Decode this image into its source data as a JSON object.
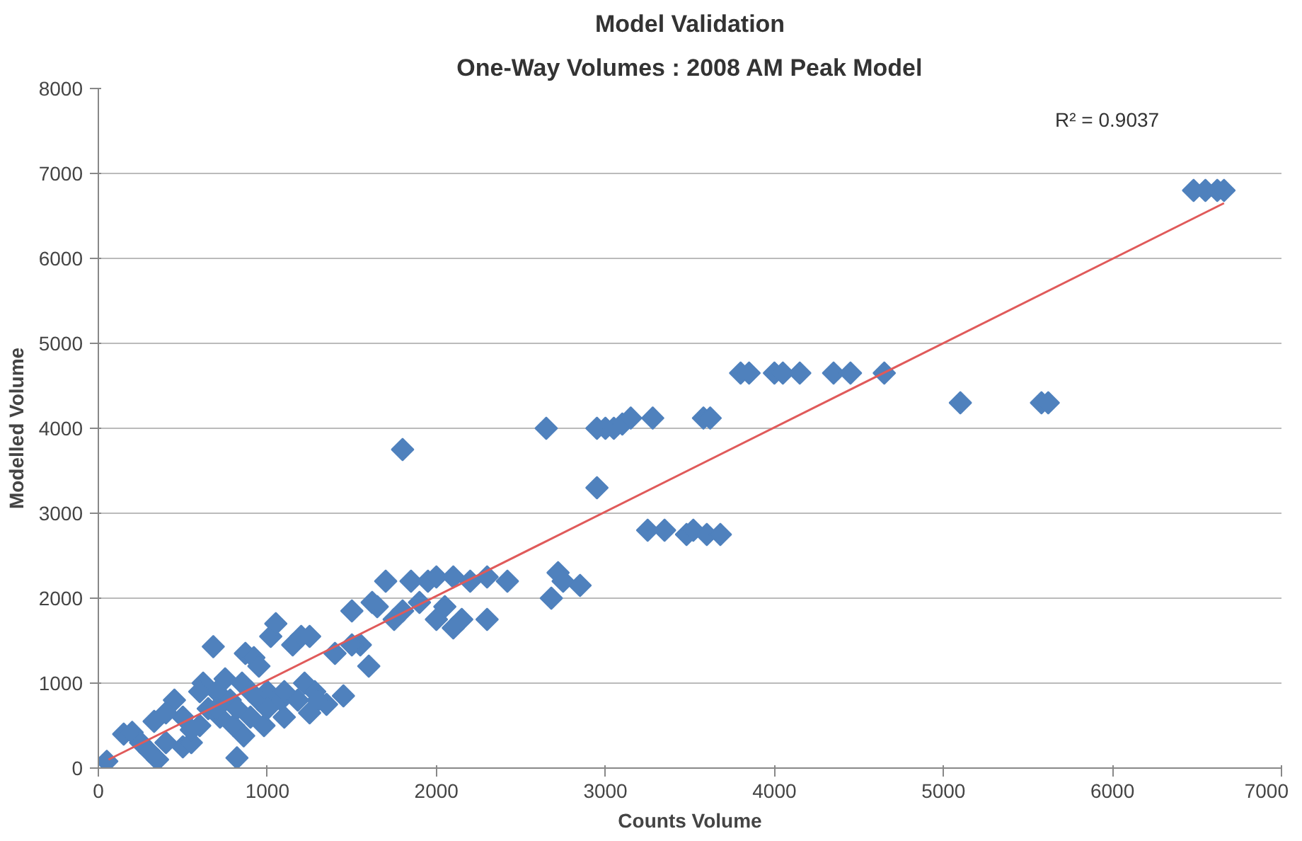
{
  "chart_data": {
    "type": "scatter",
    "title": "Model Validation",
    "subtitle": "One-Way Volumes : 2008 AM Peak Model",
    "xlabel": "Counts Volume",
    "ylabel": "Modelled Volume",
    "xlim": [
      0,
      7000
    ],
    "ylim": [
      0,
      8000
    ],
    "xticks": [
      0,
      1000,
      2000,
      3000,
      4000,
      5000,
      6000,
      7000
    ],
    "yticks": [
      0,
      1000,
      2000,
      3000,
      4000,
      5000,
      6000,
      7000,
      8000
    ],
    "grid": "y",
    "annotations": [
      "R² = 0.9037"
    ],
    "series": [
      {
        "color": "#4f81bd",
        "marker": "diamond",
        "x": [
          50,
          150,
          200,
          250,
          300,
          350,
          330,
          400,
          450,
          500,
          500,
          550,
          600,
          620,
          650,
          680,
          700,
          720,
          750,
          780,
          800,
          820,
          850,
          870,
          900,
          920,
          950,
          980,
          1000,
          1020,
          1050,
          1080,
          1100,
          1150,
          1180,
          1200,
          1220,
          1250,
          1280,
          1350,
          1400,
          1450,
          820,
          860,
          700,
          900,
          1000,
          1100,
          950,
          600,
          550,
          400,
          1300,
          1250,
          1500,
          1550,
          1600,
          1650,
          1700,
          1750,
          1800,
          1800,
          1850,
          1900,
          1950,
          2000,
          2000,
          2050,
          2100,
          2100,
          2150,
          2200,
          2300,
          2300,
          2420,
          1500,
          1620,
          2650,
          2680,
          2720,
          2750,
          2850,
          2950,
          2950,
          3000,
          3050,
          3100,
          3150,
          3280,
          3250,
          3350,
          3480,
          3520,
          3600,
          3680,
          3580,
          3620,
          3800,
          3850,
          4000,
          4050,
          4150,
          4350,
          4450,
          4650,
          5100,
          5580,
          5620,
          6480,
          6550,
          6620,
          6660
        ],
        "values": [
          80,
          400,
          420,
          300,
          200,
          100,
          550,
          300,
          800,
          600,
          250,
          300,
          500,
          1000,
          700,
          1430,
          900,
          600,
          1050,
          800,
          500,
          700,
          1000,
          1350,
          600,
          1300,
          800,
          500,
          900,
          1550,
          1700,
          800,
          900,
          1450,
          800,
          1550,
          1000,
          650,
          900,
          750,
          1350,
          850,
          120,
          380,
          700,
          900,
          700,
          600,
          1200,
          900,
          450,
          650,
          800,
          1550,
          1850,
          1450,
          1200,
          1900,
          2200,
          1750,
          1850,
          3750,
          2200,
          1950,
          2200,
          1750,
          2250,
          1900,
          2250,
          1650,
          1750,
          2200,
          1750,
          2250,
          2200,
          1450,
          1950,
          4000,
          2000,
          2300,
          2200,
          2150,
          3300,
          4000,
          4000,
          4000,
          4050,
          4120,
          4120,
          2800,
          2800,
          2750,
          2800,
          2750,
          2750,
          4120,
          4120,
          4650,
          4650,
          4650,
          4650,
          4650,
          4650,
          4650,
          4650,
          4300,
          4300,
          4300,
          6800,
          6800,
          6800,
          6800
        ]
      },
      {
        "type": "line",
        "color": "#e05a5a",
        "x": [
          60,
          6660
        ],
        "values": [
          100,
          6650
        ]
      }
    ]
  }
}
